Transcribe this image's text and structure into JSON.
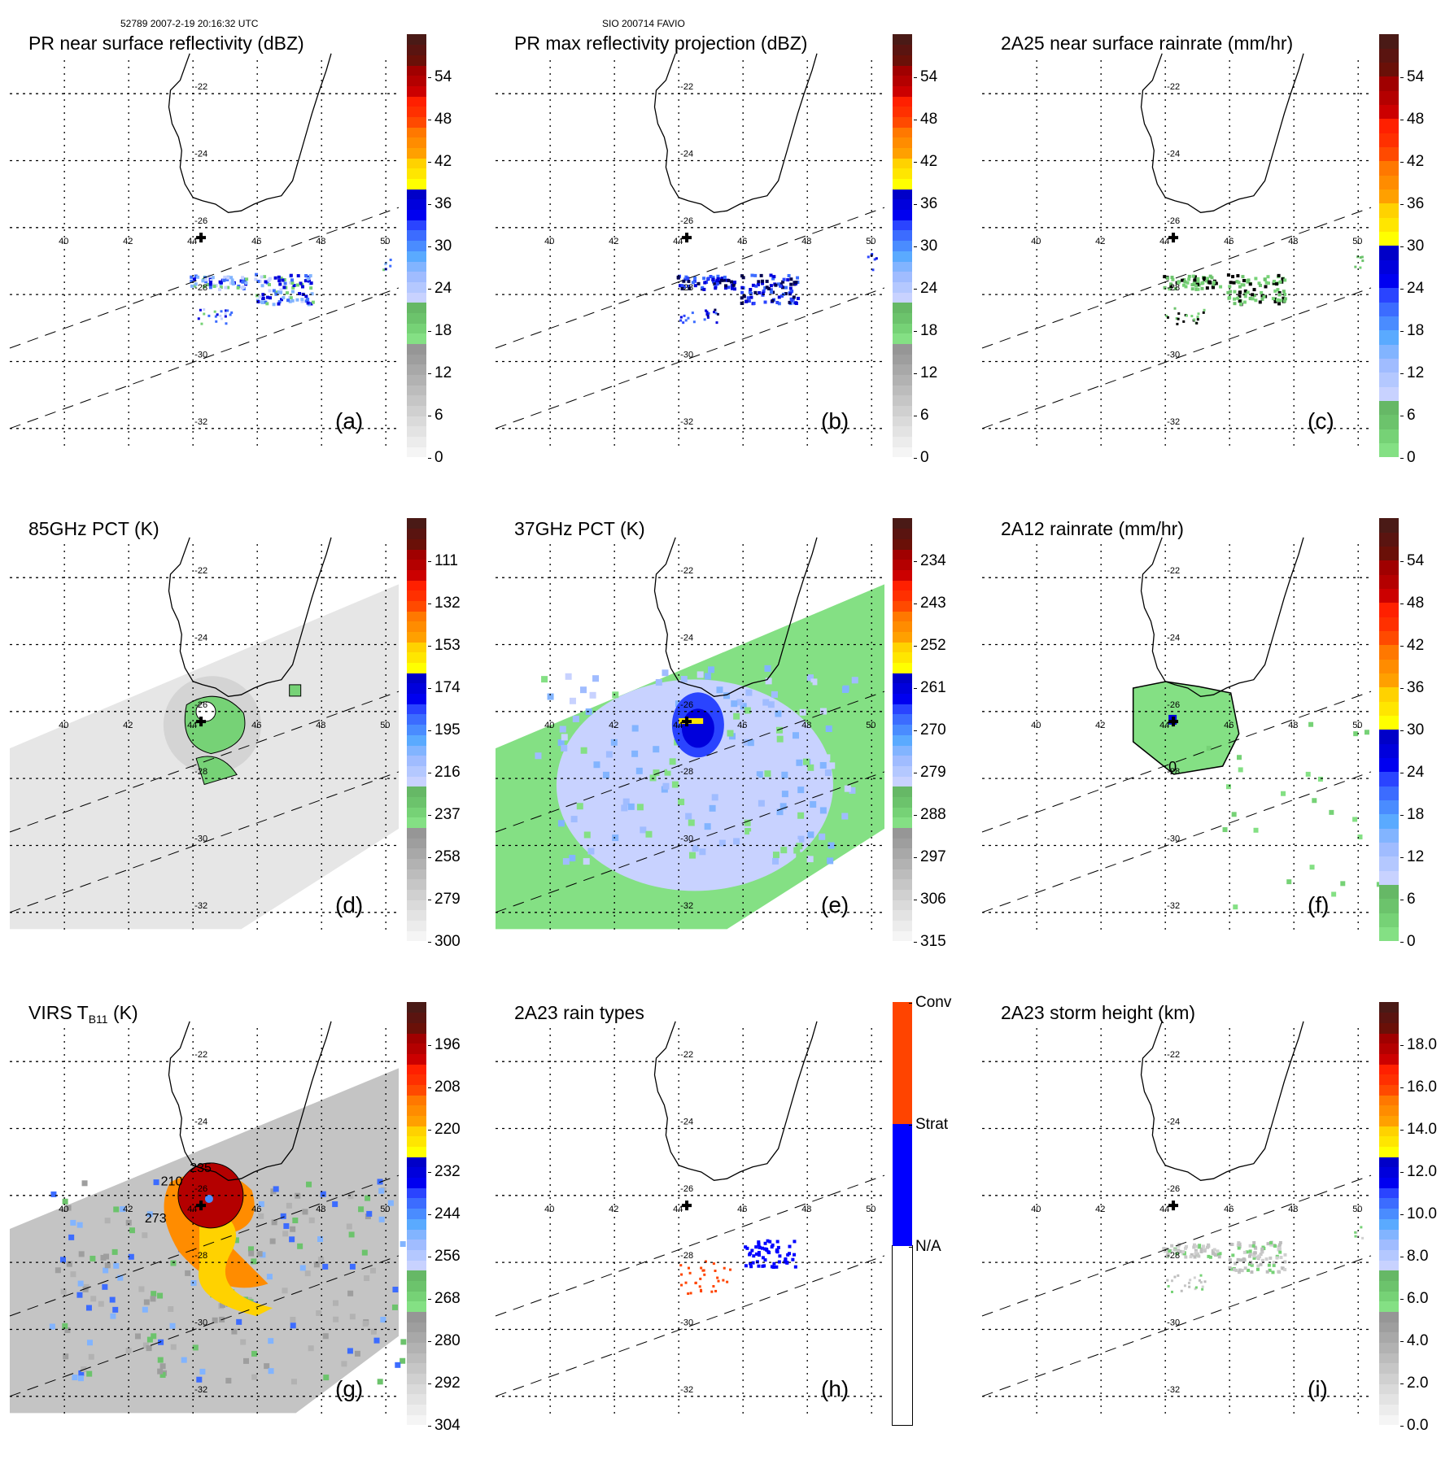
{
  "header": {
    "orbit_time": "52789 2007-2-19 20:16:32 UTC",
    "storm": "SIO 200714 FAVIO"
  },
  "map_grid": {
    "lon_labels": [
      "40",
      "42",
      "44",
      "46",
      "48",
      "50"
    ],
    "lat_labels": [
      "-22",
      "-24",
      "-26",
      "-28",
      "-30",
      "-32"
    ],
    "storm_center_marker": "+"
  },
  "colorbars": {
    "standard_colors": [
      "#f5f5f5",
      "#ececec",
      "#e3e3e3",
      "#dadada",
      "#d0d0d0",
      "#c6c6c6",
      "#bcbcbc",
      "#b2b2b2",
      "#a8a8a8",
      "#9e9e9e",
      "#969696",
      "#84e084",
      "#76d276",
      "#6cc36c",
      "#66b866",
      "#c8d2ff",
      "#b4c8ff",
      "#a0bcff",
      "#82b4ff",
      "#5aaaff",
      "#4a8cff",
      "#3c6cff",
      "#2a44ff",
      "#0000f0",
      "#0000dc",
      "#0000c8",
      "#ffff00",
      "#ffe600",
      "#ffd200",
      "#ffa000",
      "#ff8c00",
      "#ff7800",
      "#ff4a00",
      "#ff3000",
      "#ff2000",
      "#cc0000",
      "#b40000",
      "#a00000",
      "#6a1008",
      "#5a1410",
      "#4a1a16"
    ],
    "rain_colors": [
      "#84e084",
      "#76d276",
      "#6cc36c",
      "#66b866",
      "#c8d2ff",
      "#b4c8ff",
      "#a0bcff",
      "#82b4ff",
      "#5aaaff",
      "#4a8cff",
      "#3c6cff",
      "#2a44ff",
      "#0000f0",
      "#0000dc",
      "#0000c8",
      "#ffff00",
      "#ffe600",
      "#ffd200",
      "#ffa000",
      "#ff8c00",
      "#ff7800",
      "#ff4a00",
      "#ff3000",
      "#ff2000",
      "#cc0000",
      "#b40000",
      "#a00000",
      "#6a1008",
      "#5a1410",
      "#4a1a16"
    ],
    "raintype_colors": [
      "#ffffff",
      "#0000ff",
      "#ff4400"
    ]
  },
  "panels": [
    {
      "id": "a",
      "title": "PR near surface reflectivity (dBZ)",
      "label": "(a)",
      "cbar": "standard",
      "ticks": [
        "0",
        "6",
        "12",
        "18",
        "24",
        "30",
        "36",
        "42",
        "48",
        "54"
      ],
      "field": "pr_reflectivity"
    },
    {
      "id": "b",
      "title": "PR max reflectivity projection (dBZ)",
      "label": "(b)",
      "cbar": "standard",
      "ticks": [
        "0",
        "6",
        "12",
        "18",
        "24",
        "30",
        "36",
        "42",
        "48",
        "54"
      ],
      "field": "pr_max"
    },
    {
      "id": "c",
      "title": "2A25 near surface rainrate (mm/hr)",
      "label": "(c)",
      "cbar": "rain",
      "ticks": [
        "0",
        "6",
        "12",
        "18",
        "24",
        "30",
        "36",
        "42",
        "48",
        "54"
      ],
      "field": "pr_rain"
    },
    {
      "id": "d",
      "title": "85GHz PCT (K)",
      "label": "(d)",
      "cbar": "standard",
      "ticks": [
        "300",
        "279",
        "258",
        "237",
        "216",
        "195",
        "174",
        "153",
        "132",
        "111"
      ],
      "field": "pct85"
    },
    {
      "id": "e",
      "title": "37GHz PCT (K)",
      "label": "(e)",
      "cbar": "standard",
      "ticks": [
        "315",
        "306",
        "297",
        "288",
        "279",
        "270",
        "261",
        "252",
        "243",
        "234"
      ],
      "field": "pct37"
    },
    {
      "id": "f",
      "title": "2A12 rainrate (mm/hr)",
      "label": "(f)",
      "cbar": "rain",
      "ticks": [
        "0",
        "6",
        "12",
        "18",
        "24",
        "30",
        "36",
        "42",
        "48",
        "54"
      ],
      "field": "tmi_rain"
    },
    {
      "id": "g",
      "title_main": "VIRS T",
      "title_sub": "B11",
      "title_unit": " (K)",
      "label": "(g)",
      "cbar": "standard",
      "ticks": [
        "304",
        "292",
        "280",
        "268",
        "256",
        "244",
        "232",
        "220",
        "208",
        "196"
      ],
      "field": "virs",
      "contour_labels": [
        "210",
        "235",
        "273"
      ]
    },
    {
      "id": "h",
      "title": "2A23 rain types",
      "label": "(h)",
      "cbar": "raintype",
      "ticks": [
        "N/A",
        "Strat",
        "Conv"
      ],
      "field": "raintype"
    },
    {
      "id": "i",
      "title": "2A23 storm height (km)",
      "label": "(i)",
      "cbar": "standard",
      "ticks": [
        "0.0",
        "2.0",
        "4.0",
        "6.0",
        "8.0",
        "10.0",
        "12.0",
        "14.0",
        "16.0",
        "18.0"
      ],
      "field": "stormheight"
    }
  ]
}
